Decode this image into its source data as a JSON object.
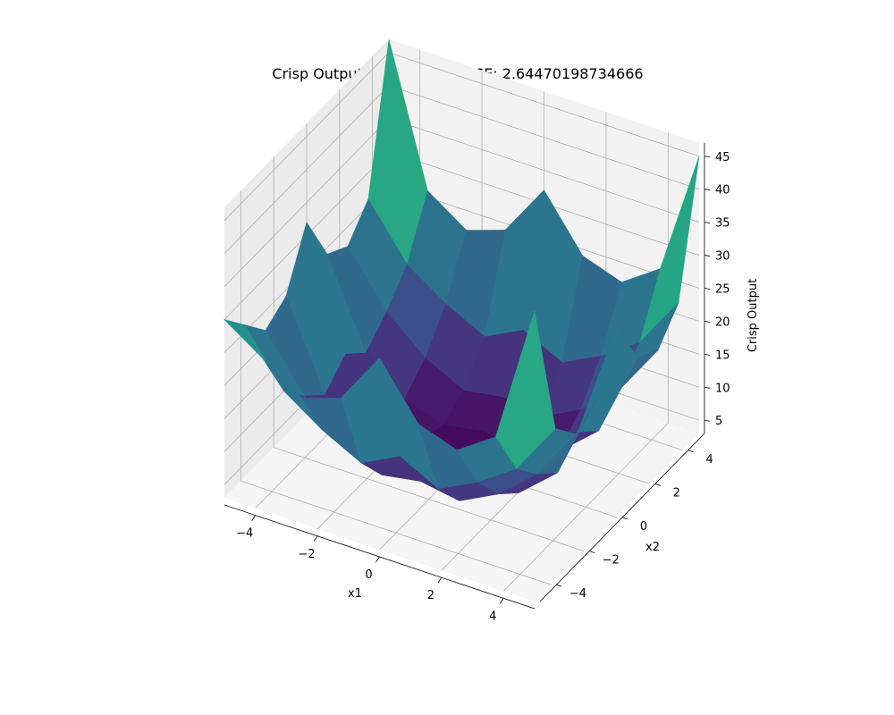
{
  "chart_data": {
    "type": "surface",
    "title": "Crisp Output Surface Plot, MSE: 2.64470198734666",
    "xlabel": "x1",
    "ylabel": "x2",
    "zlabel": "Crisp Output",
    "xlim": [
      -5,
      5
    ],
    "ylim": [
      -5,
      5
    ],
    "zlim": [
      3,
      47
    ],
    "x_ticks": [
      -4,
      -2,
      0,
      2,
      4
    ],
    "y_ticks": [
      -4,
      -2,
      0,
      2,
      4
    ],
    "z_ticks": [
      5,
      10,
      15,
      20,
      25,
      30,
      35,
      40,
      45
    ],
    "grid": true,
    "colormap": "viridis",
    "x": [
      -5,
      -3.75,
      -2.5,
      -1.25,
      0,
      1.25,
      2.5,
      3.75,
      5
    ],
    "y": [
      -5,
      -3.75,
      -2.5,
      -1.25,
      0,
      1.25,
      2.5,
      3.75,
      5
    ],
    "z": [
      [
        30,
        26,
        22,
        24,
        32,
        24,
        22,
        26,
        47
      ],
      [
        26,
        18,
        14,
        11,
        14,
        11,
        14,
        18,
        26
      ],
      [
        22,
        14,
        9,
        6,
        7,
        6,
        9,
        14,
        22
      ],
      [
        24,
        11,
        6,
        4,
        5,
        4,
        6,
        11,
        24
      ],
      [
        32,
        14,
        7,
        5,
        3,
        5,
        7,
        14,
        32
      ],
      [
        24,
        11,
        6,
        4,
        5,
        4,
        6,
        11,
        24
      ],
      [
        22,
        14,
        9,
        6,
        7,
        6,
        9,
        14,
        22
      ],
      [
        26,
        18,
        14,
        11,
        14,
        11,
        14,
        18,
        26
      ],
      [
        47,
        26,
        22,
        24,
        32,
        24,
        22,
        26,
        45
      ]
    ]
  }
}
